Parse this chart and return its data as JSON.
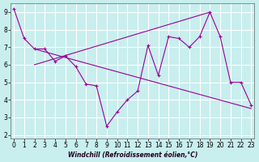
{
  "background_color": "#c8eeee",
  "grid_color": "#aadddd",
  "line_color": "#990099",
  "xlabel": "Windchill (Refroidissement éolien,°C)",
  "x_values": [
    0,
    1,
    2,
    3,
    4,
    5,
    6,
    7,
    8,
    9,
    10,
    11,
    12,
    13,
    14,
    15,
    16,
    17,
    18,
    19,
    20,
    21,
    22,
    23
  ],
  "y_main": [
    9.2,
    7.5,
    6.9,
    6.9,
    6.2,
    6.5,
    5.9,
    4.9,
    4.8,
    2.5,
    3.3,
    4.0,
    4.5,
    7.1,
    5.4,
    7.6,
    7.5,
    7.0,
    7.6,
    9.0,
    7.6,
    5.0,
    5.0,
    3.7
  ],
  "x_upper_start": 2,
  "y_upper_start": 6.0,
  "x_upper_end": 19,
  "y_upper_end": 9.0,
  "x_lower_start": 2,
  "y_lower_start": 6.9,
  "x_lower_end": 23,
  "y_lower_end": 3.5,
  "ylim_min": 1.8,
  "ylim_max": 9.5,
  "xlim_min": -0.3,
  "xlim_max": 23.3,
  "yticks": [
    2,
    3,
    4,
    5,
    6,
    7,
    8,
    9
  ],
  "xticks": [
    0,
    1,
    2,
    3,
    4,
    5,
    6,
    7,
    8,
    9,
    10,
    11,
    12,
    13,
    14,
    15,
    16,
    17,
    18,
    19,
    20,
    21,
    22,
    23
  ],
  "tick_fontsize": 5.5,
  "xlabel_fontsize": 5.5
}
